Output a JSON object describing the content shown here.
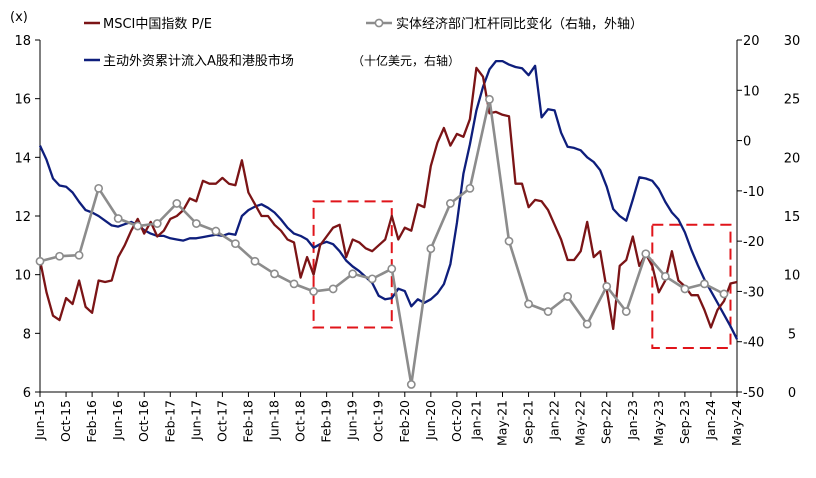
{
  "chart_data": {
    "type": "line",
    "unit_label": "(x)",
    "left_axis": {
      "ylim": [
        6,
        18
      ],
      "ticks": [
        6,
        8,
        10,
        12,
        14,
        16,
        18
      ]
    },
    "right_axis_inner": {
      "ylim": [
        -50,
        20
      ],
      "ticks": [
        -50,
        -40,
        -30,
        -20,
        -10,
        0,
        10,
        20
      ],
      "label": "右轴，外轴"
    },
    "right_axis_outer": {
      "ylim": [
        0,
        30
      ],
      "ticks": [
        0,
        5,
        10,
        15,
        20,
        25,
        30
      ],
      "label": "十亿美元，右轴"
    },
    "x_ticks": [
      "Jun-15",
      "Oct-15",
      "Feb-16",
      "Jun-16",
      "Oct-16",
      "Feb-17",
      "Jun-17",
      "Oct-17",
      "Feb-18",
      "Jun-18",
      "Oct-18",
      "Feb-19",
      "Jun-19",
      "Oct-19",
      "Feb-20",
      "Jun-20",
      "Oct-20",
      "Jan-21",
      "May-21",
      "Sep-21",
      "Jan-22",
      "May-22",
      "Sep-22",
      "Jan-23",
      "May-23",
      "Sep-23",
      "Jan-24",
      "May-24"
    ],
    "x_range": [
      "2015-06",
      "2024-05"
    ],
    "series": [
      {
        "name": "MSCI中国指数 P/E",
        "axis": "left",
        "color": "#7B1416",
        "marker": "none",
        "points": [
          [
            "2015-06",
            10.5
          ],
          [
            "2015-07",
            9.4
          ],
          [
            "2015-08",
            8.6
          ],
          [
            "2015-09",
            8.45
          ],
          [
            "2015-10",
            9.2
          ],
          [
            "2015-11",
            9.0
          ],
          [
            "2015-12",
            9.8
          ],
          [
            "2016-01",
            8.9
          ],
          [
            "2016-02",
            8.7
          ],
          [
            "2016-03",
            9.8
          ],
          [
            "2016-04",
            9.75
          ],
          [
            "2016-05",
            9.8
          ],
          [
            "2016-06",
            10.6
          ],
          [
            "2016-07",
            11.0
          ],
          [
            "2016-08",
            11.5
          ],
          [
            "2016-09",
            11.9
          ],
          [
            "2016-10",
            11.4
          ],
          [
            "2016-11",
            11.8
          ],
          [
            "2016-12",
            11.3
          ],
          [
            "2017-01",
            11.5
          ],
          [
            "2017-02",
            11.9
          ],
          [
            "2017-03",
            12.0
          ],
          [
            "2017-04",
            12.2
          ],
          [
            "2017-05",
            12.6
          ],
          [
            "2017-06",
            12.5
          ],
          [
            "2017-07",
            13.2
          ],
          [
            "2017-08",
            13.1
          ],
          [
            "2017-09",
            13.1
          ],
          [
            "2017-10",
            13.3
          ],
          [
            "2017-11",
            13.1
          ],
          [
            "2017-12",
            13.05
          ],
          [
            "2018-01",
            13.9
          ],
          [
            "2018-02",
            12.8
          ],
          [
            "2018-03",
            12.4
          ],
          [
            "2018-04",
            12.0
          ],
          [
            "2018-05",
            12.0
          ],
          [
            "2018-06",
            11.7
          ],
          [
            "2018-07",
            11.5
          ],
          [
            "2018-08",
            11.2
          ],
          [
            "2018-09",
            11.1
          ],
          [
            "2018-10",
            9.9
          ],
          [
            "2018-11",
            10.6
          ],
          [
            "2018-12",
            10.0
          ],
          [
            "2019-01",
            11.0
          ],
          [
            "2019-02",
            11.3
          ],
          [
            "2019-03",
            11.6
          ],
          [
            "2019-04",
            11.7
          ],
          [
            "2019-05",
            10.6
          ],
          [
            "2019-06",
            11.2
          ],
          [
            "2019-07",
            11.1
          ],
          [
            "2019-08",
            10.9
          ],
          [
            "2019-09",
            10.8
          ],
          [
            "2019-10",
            11.0
          ],
          [
            "2019-11",
            11.2
          ],
          [
            "2019-12",
            12.0
          ],
          [
            "2020-01",
            11.2
          ],
          [
            "2020-02",
            11.6
          ],
          [
            "2020-03",
            11.5
          ],
          [
            "2020-04",
            12.4
          ],
          [
            "2020-05",
            12.3
          ],
          [
            "2020-06",
            13.7
          ],
          [
            "2020-07",
            14.5
          ],
          [
            "2020-08",
            15.0
          ],
          [
            "2020-09",
            14.4
          ],
          [
            "2020-10",
            14.8
          ],
          [
            "2020-11",
            14.7
          ],
          [
            "2020-12",
            15.3
          ],
          [
            "2021-01",
            17.05
          ],
          [
            "2021-02",
            16.75
          ],
          [
            "2021-03",
            15.5
          ],
          [
            "2021-04",
            15.55
          ],
          [
            "2021-05",
            15.45
          ],
          [
            "2021-06",
            15.4
          ],
          [
            "2021-07",
            13.1
          ],
          [
            "2021-08",
            13.1
          ],
          [
            "2021-09",
            12.3
          ],
          [
            "2021-10",
            12.55
          ],
          [
            "2021-11",
            12.5
          ],
          [
            "2021-12",
            12.2
          ],
          [
            "2022-01",
            11.7
          ],
          [
            "2022-02",
            11.2
          ],
          [
            "2022-03",
            10.5
          ],
          [
            "2022-04",
            10.5
          ],
          [
            "2022-05",
            10.8
          ],
          [
            "2022-06",
            11.8
          ],
          [
            "2022-07",
            10.6
          ],
          [
            "2022-08",
            10.8
          ],
          [
            "2022-09",
            9.5
          ],
          [
            "2022-10",
            8.15
          ],
          [
            "2022-11",
            10.3
          ],
          [
            "2022-12",
            10.5
          ],
          [
            "2023-01",
            11.3
          ],
          [
            "2023-02",
            10.3
          ],
          [
            "2023-03",
            10.7
          ],
          [
            "2023-04",
            10.3
          ],
          [
            "2023-05",
            9.4
          ],
          [
            "2023-06",
            9.8
          ],
          [
            "2023-07",
            10.8
          ],
          [
            "2023-08",
            9.8
          ],
          [
            "2023-09",
            9.6
          ],
          [
            "2023-10",
            9.3
          ],
          [
            "2023-11",
            9.3
          ],
          [
            "2023-12",
            8.8
          ],
          [
            "2024-01",
            8.2
          ],
          [
            "2024-02",
            8.8
          ],
          [
            "2024-03",
            9.1
          ],
          [
            "2024-04",
            9.7
          ],
          [
            "2024-05",
            9.75
          ]
        ]
      },
      {
        "name": "实体经济部门杠杆同比变化（右轴，外轴）",
        "axis": "right_inner",
        "color": "#8C8C8C",
        "marker": "circle",
        "points": [
          [
            "2015-06",
            -24.0
          ],
          [
            "2015-09",
            -23.0
          ],
          [
            "2015-12",
            -22.8
          ],
          [
            "2016-03",
            -9.5
          ],
          [
            "2016-06",
            -15.5
          ],
          [
            "2016-09",
            -17.0
          ],
          [
            "2016-12",
            -16.5
          ],
          [
            "2017-03",
            -12.5
          ],
          [
            "2017-06",
            -16.5
          ],
          [
            "2017-09",
            -18.0
          ],
          [
            "2017-12",
            -20.5
          ],
          [
            "2018-03",
            -24.0
          ],
          [
            "2018-06",
            -26.5
          ],
          [
            "2018-09",
            -28.5
          ],
          [
            "2018-12",
            -30.0
          ],
          [
            "2019-03",
            -29.5
          ],
          [
            "2019-06",
            -26.5
          ],
          [
            "2019-09",
            -27.5
          ],
          [
            "2019-12",
            -25.5
          ],
          [
            "2020-03",
            -48.5
          ],
          [
            "2020-06",
            -21.5
          ],
          [
            "2020-09",
            -12.5
          ],
          [
            "2020-12",
            -9.5
          ],
          [
            "2021-03",
            8.2
          ],
          [
            "2021-06",
            -20.0
          ],
          [
            "2021-09",
            -32.5
          ],
          [
            "2021-12",
            -34.0
          ],
          [
            "2022-03",
            -31.0
          ],
          [
            "2022-06",
            -36.5
          ],
          [
            "2022-09",
            -29.0
          ],
          [
            "2022-12",
            -34.0
          ],
          [
            "2023-03",
            -22.5
          ],
          [
            "2023-06",
            -27.0
          ],
          [
            "2023-09",
            -29.5
          ],
          [
            "2023-12",
            -28.5
          ],
          [
            "2024-03",
            -30.5
          ]
        ]
      },
      {
        "name": "主动外资累计流入A股和港股市场",
        "axis": "right_outer",
        "color": "#0E1E7C",
        "marker": "none",
        "points": [
          [
            "2015-06",
            21.0
          ],
          [
            "2015-07",
            19.8
          ],
          [
            "2015-08",
            18.2
          ],
          [
            "2015-09",
            17.6
          ],
          [
            "2015-10",
            17.5
          ],
          [
            "2015-11",
            17.0
          ],
          [
            "2015-12",
            16.2
          ],
          [
            "2016-01",
            15.5
          ],
          [
            "2016-02",
            15.3
          ],
          [
            "2016-03",
            15.0
          ],
          [
            "2016-04",
            14.6
          ],
          [
            "2016-05",
            14.2
          ],
          [
            "2016-06",
            14.1
          ],
          [
            "2016-07",
            14.3
          ],
          [
            "2016-08",
            14.5
          ],
          [
            "2016-09",
            14.2
          ],
          [
            "2016-10",
            13.8
          ],
          [
            "2016-11",
            13.5
          ],
          [
            "2016-12",
            13.3
          ],
          [
            "2017-01",
            13.3
          ],
          [
            "2017-02",
            13.1
          ],
          [
            "2017-03",
            13.0
          ],
          [
            "2017-04",
            12.9
          ],
          [
            "2017-05",
            13.1
          ],
          [
            "2017-06",
            13.1
          ],
          [
            "2017-07",
            13.2
          ],
          [
            "2017-08",
            13.3
          ],
          [
            "2017-09",
            13.4
          ],
          [
            "2017-10",
            13.3
          ],
          [
            "2017-11",
            13.5
          ],
          [
            "2017-12",
            13.4
          ],
          [
            "2018-01",
            15.0
          ],
          [
            "2018-02",
            15.5
          ],
          [
            "2018-03",
            15.8
          ],
          [
            "2018-04",
            16.0
          ],
          [
            "2018-05",
            15.7
          ],
          [
            "2018-06",
            15.3
          ],
          [
            "2018-07",
            14.7
          ],
          [
            "2018-08",
            14.0
          ],
          [
            "2018-09",
            13.5
          ],
          [
            "2018-10",
            13.3
          ],
          [
            "2018-11",
            13.0
          ],
          [
            "2018-12",
            12.3
          ],
          [
            "2019-01",
            12.6
          ],
          [
            "2019-02",
            12.8
          ],
          [
            "2019-03",
            12.6
          ],
          [
            "2019-04",
            12.0
          ],
          [
            "2019-05",
            11.2
          ],
          [
            "2019-06",
            10.7
          ],
          [
            "2019-07",
            10.3
          ],
          [
            "2019-08",
            9.8
          ],
          [
            "2019-09",
            9.3
          ],
          [
            "2019-10",
            8.2
          ],
          [
            "2019-11",
            7.9
          ],
          [
            "2019-12",
            8.0
          ],
          [
            "2020-01",
            8.8
          ],
          [
            "2020-02",
            8.6
          ],
          [
            "2020-03",
            7.3
          ],
          [
            "2020-04",
            7.9
          ],
          [
            "2020-05",
            7.6
          ],
          [
            "2020-06",
            7.9
          ],
          [
            "2020-07",
            8.4
          ],
          [
            "2020-08",
            9.2
          ],
          [
            "2020-09",
            10.9
          ],
          [
            "2020-10",
            14.4
          ],
          [
            "2020-11",
            18.6
          ],
          [
            "2020-12",
            21.1
          ],
          [
            "2021-01",
            24.0
          ],
          [
            "2021-02",
            26.0
          ],
          [
            "2021-03",
            27.5
          ],
          [
            "2021-04",
            28.2
          ],
          [
            "2021-05",
            28.2
          ],
          [
            "2021-06",
            27.9
          ],
          [
            "2021-07",
            27.7
          ],
          [
            "2021-08",
            27.6
          ],
          [
            "2021-09",
            27.0
          ],
          [
            "2021-10",
            27.8
          ],
          [
            "2021-11",
            23.4
          ],
          [
            "2021-12",
            24.1
          ],
          [
            "2022-01",
            24.0
          ],
          [
            "2022-02",
            22.1
          ],
          [
            "2022-03",
            20.9
          ],
          [
            "2022-04",
            20.8
          ],
          [
            "2022-05",
            20.6
          ],
          [
            "2022-06",
            20.0
          ],
          [
            "2022-07",
            19.6
          ],
          [
            "2022-08",
            18.9
          ],
          [
            "2022-09",
            17.5
          ],
          [
            "2022-10",
            15.6
          ],
          [
            "2022-11",
            15.0
          ],
          [
            "2022-12",
            14.6
          ],
          [
            "2023-01",
            16.4
          ],
          [
            "2023-02",
            18.3
          ],
          [
            "2023-03",
            18.2
          ],
          [
            "2023-04",
            18.0
          ],
          [
            "2023-05",
            17.3
          ],
          [
            "2023-06",
            16.2
          ],
          [
            "2023-07",
            15.3
          ],
          [
            "2023-08",
            14.7
          ],
          [
            "2023-09",
            13.6
          ],
          [
            "2023-10",
            12.1
          ],
          [
            "2023-11",
            10.8
          ],
          [
            "2023-12",
            9.6
          ],
          [
            "2024-01",
            8.6
          ],
          [
            "2024-02",
            7.6
          ],
          [
            "2024-03",
            6.6
          ],
          [
            "2024-04",
            5.6
          ],
          [
            "2024-05",
            4.5
          ]
        ]
      }
    ],
    "annotations": [
      {
        "type": "dashed-box",
        "color": "#E0141A",
        "x": [
          "2018-12",
          "2019-12"
        ],
        "y_left": [
          8.2,
          12.5
        ]
      },
      {
        "type": "dashed-box",
        "color": "#E0141A",
        "x": [
          "2023-04",
          "2024-04"
        ],
        "y_left": [
          7.5,
          11.7
        ]
      }
    ],
    "grid": false,
    "legend_position": "top"
  }
}
